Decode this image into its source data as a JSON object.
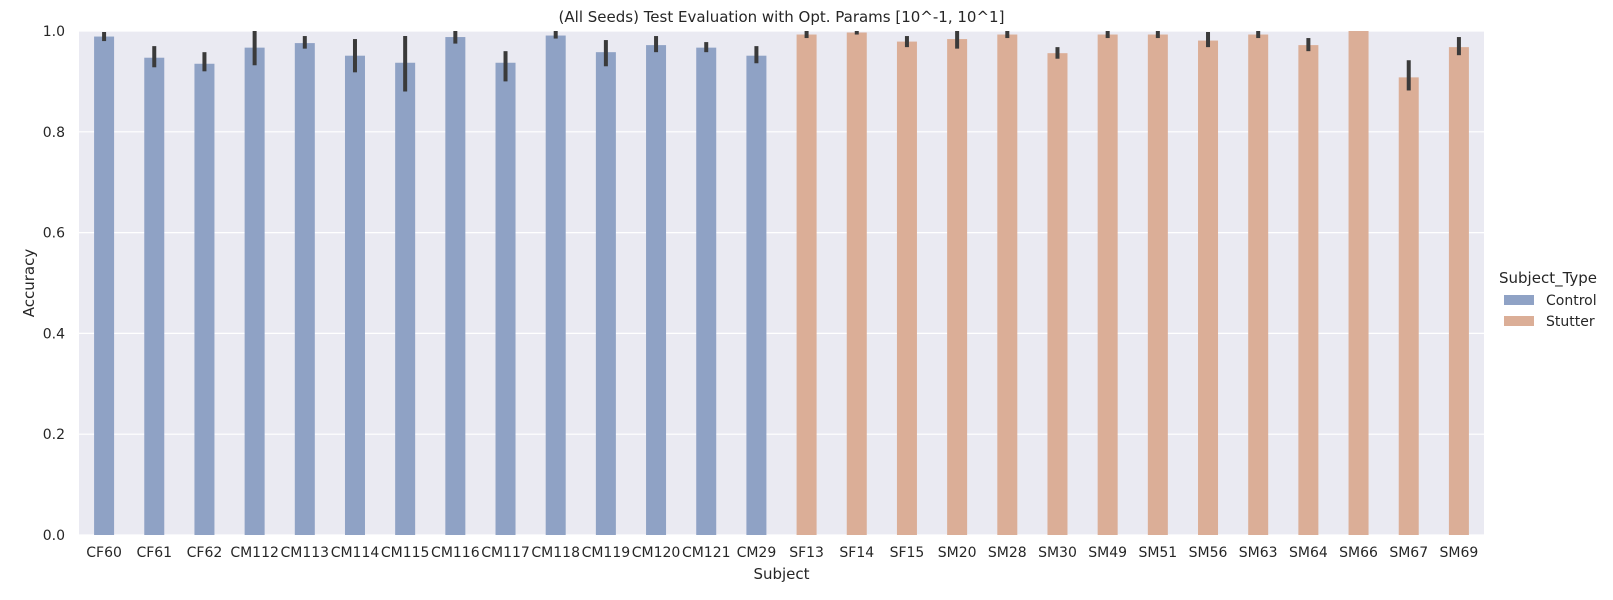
{
  "chart_data": {
    "type": "bar",
    "title": "(All Seeds) Test Evaluation with Opt. Params [10^-1, 10^1]",
    "xlabel": "Subject",
    "ylabel": "Accuracy",
    "ylim": [
      0,
      1.0
    ],
    "yticks": [
      "0.0",
      "0.2",
      "0.4",
      "0.6",
      "0.8",
      "1.0"
    ],
    "grid": true,
    "legend": {
      "title": "Subject_Type",
      "placement": "right",
      "entries": [
        {
          "name": "Control",
          "color": "#8fa2c5"
        },
        {
          "name": "Stutter",
          "color": "#dbae97"
        }
      ]
    },
    "categories": [
      "CF60",
      "CF61",
      "CF62",
      "CM112",
      "CM113",
      "CM114",
      "CM115",
      "CM116",
      "CM117",
      "CM118",
      "CM119",
      "CM120",
      "CM121",
      "CM29",
      "SF13",
      "SF14",
      "SF15",
      "SM20",
      "SM28",
      "SM30",
      "SM49",
      "SM51",
      "SM56",
      "SM63",
      "SM64",
      "SM66",
      "SM67",
      "SM69"
    ],
    "series": [
      {
        "name": "Control",
        "color": "#8fa2c5",
        "values": [
          0.989,
          0.947,
          0.935,
          0.967,
          0.976,
          0.951,
          0.937,
          0.988,
          0.937,
          0.991,
          0.958,
          0.972,
          0.967,
          0.951,
          null,
          null,
          null,
          null,
          null,
          null,
          null,
          null,
          null,
          null,
          null,
          null,
          null,
          null
        ],
        "err_low": [
          0.98,
          0.928,
          0.92,
          0.932,
          0.965,
          0.918,
          0.88,
          0.975,
          0.9,
          0.985,
          0.93,
          0.958,
          0.958,
          0.936,
          null,
          null,
          null,
          null,
          null,
          null,
          null,
          null,
          null,
          null,
          null,
          null,
          null,
          null
        ],
        "err_high": [
          0.998,
          0.97,
          0.958,
          1.0,
          0.99,
          0.984,
          0.99,
          1.0,
          0.96,
          1.0,
          0.982,
          0.99,
          0.978,
          0.97,
          null,
          null,
          null,
          null,
          null,
          null,
          null,
          null,
          null,
          null,
          null,
          null,
          null,
          null
        ]
      },
      {
        "name": "Stutter",
        "color": "#dbae97",
        "values": [
          null,
          null,
          null,
          null,
          null,
          null,
          null,
          null,
          null,
          null,
          null,
          null,
          null,
          null,
          0.993,
          0.997,
          0.979,
          0.984,
          0.993,
          0.956,
          0.993,
          0.993,
          0.981,
          0.993,
          0.972,
          1.0,
          0.908,
          0.968
        ],
        "err_low": [
          null,
          null,
          null,
          null,
          null,
          null,
          null,
          null,
          null,
          null,
          null,
          null,
          null,
          null,
          0.986,
          0.993,
          0.968,
          0.965,
          0.986,
          0.945,
          0.986,
          0.986,
          0.968,
          0.986,
          0.96,
          1.0,
          0.882,
          0.952
        ],
        "err_high": [
          null,
          null,
          null,
          null,
          null,
          null,
          null,
          null,
          null,
          null,
          null,
          null,
          null,
          null,
          1.0,
          1.0,
          0.99,
          1.0,
          1.0,
          0.968,
          1.0,
          1.0,
          0.998,
          1.0,
          0.986,
          1.0,
          0.942,
          0.988
        ]
      }
    ]
  }
}
